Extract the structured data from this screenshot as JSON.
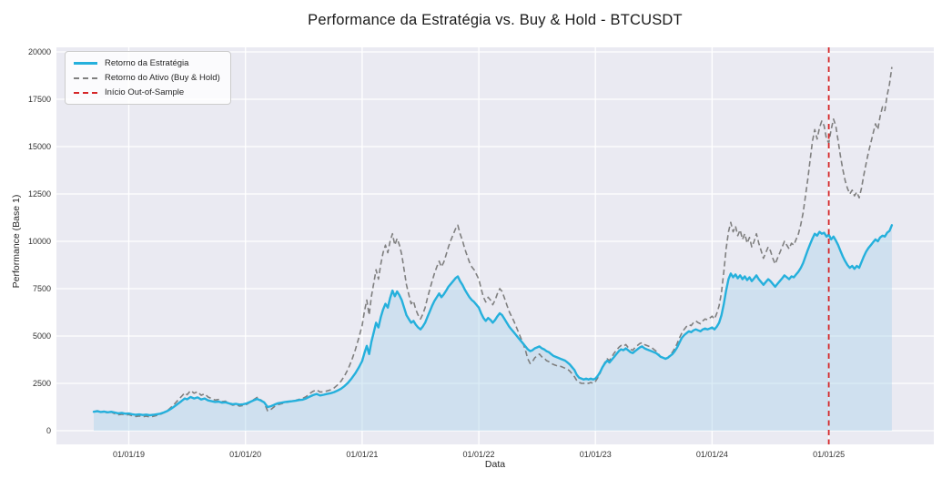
{
  "chart_data": {
    "type": "line",
    "title": "Performance da Estratégia vs. Buy & Hold - BTCUSDT",
    "xlabel": "Data",
    "ylabel": "Performance (Base 1)",
    "grid": true,
    "background_color": "#eaeaf2",
    "grid_color": "#ffffff",
    "legend_position": "upper-left",
    "xlim": [
      2018.38,
      2025.9
    ],
    "ylim": [
      0,
      20000
    ],
    "y_ticks": [
      0,
      2500,
      5000,
      7500,
      10000,
      12500,
      15000,
      17500,
      20000
    ],
    "x_ticks": [
      {
        "x": 2019,
        "label": "01/01/19"
      },
      {
        "x": 2020,
        "label": "01/01/20"
      },
      {
        "x": 2021,
        "label": "01/01/21"
      },
      {
        "x": 2022,
        "label": "01/01/22"
      },
      {
        "x": 2023,
        "label": "01/01/23"
      },
      {
        "x": 2024,
        "label": "01/01/24"
      },
      {
        "x": 2025,
        "label": "01/01/25"
      }
    ],
    "vline": {
      "label": "Início Out-of-Sample",
      "x": 2025.0,
      "color": "#d62728",
      "line_style": "dashed"
    },
    "x": [
      2018.7,
      2018.73,
      2018.76,
      2018.79,
      2018.82,
      2018.85,
      2018.88,
      2018.91,
      2018.94,
      2018.97,
      2019.0,
      2019.03,
      2019.06,
      2019.09,
      2019.12,
      2019.15,
      2019.18,
      2019.21,
      2019.24,
      2019.27,
      2019.3,
      2019.33,
      2019.36,
      2019.39,
      2019.42,
      2019.45,
      2019.48,
      2019.5,
      2019.53,
      2019.56,
      2019.59,
      2019.62,
      2019.65,
      2019.68,
      2019.71,
      2019.74,
      2019.77,
      2019.8,
      2019.83,
      2019.86,
      2019.89,
      2019.92,
      2019.95,
      2019.98,
      2020.01,
      2020.04,
      2020.07,
      2020.1,
      2020.13,
      2020.16,
      2020.19,
      2020.22,
      2020.25,
      2020.28,
      2020.31,
      2020.34,
      2020.37,
      2020.4,
      2020.43,
      2020.46,
      2020.49,
      2020.52,
      2020.55,
      2020.58,
      2020.61,
      2020.64,
      2020.67,
      2020.7,
      2020.73,
      2020.76,
      2020.79,
      2020.82,
      2020.85,
      2020.88,
      2020.91,
      2020.94,
      2020.97,
      2021.0,
      2021.02,
      2021.04,
      2021.06,
      2021.08,
      2021.1,
      2021.12,
      2021.14,
      2021.16,
      2021.18,
      2021.2,
      2021.22,
      2021.24,
      2021.26,
      2021.28,
      2021.3,
      2021.32,
      2021.34,
      2021.36,
      2021.38,
      2021.4,
      2021.42,
      2021.44,
      2021.46,
      2021.48,
      2021.5,
      2021.52,
      2021.54,
      2021.56,
      2021.58,
      2021.6,
      2021.62,
      2021.64,
      2021.66,
      2021.68,
      2021.7,
      2021.72,
      2021.74,
      2021.76,
      2021.78,
      2021.8,
      2021.82,
      2021.84,
      2021.86,
      2021.88,
      2021.9,
      2021.92,
      2021.94,
      2021.96,
      2021.98,
      2022.0,
      2022.02,
      2022.04,
      2022.06,
      2022.08,
      2022.1,
      2022.12,
      2022.14,
      2022.16,
      2022.18,
      2022.2,
      2022.22,
      2022.24,
      2022.26,
      2022.28,
      2022.3,
      2022.32,
      2022.34,
      2022.36,
      2022.38,
      2022.4,
      2022.42,
      2022.44,
      2022.46,
      2022.48,
      2022.5,
      2022.52,
      2022.54,
      2022.56,
      2022.58,
      2022.6,
      2022.62,
      2022.64,
      2022.66,
      2022.68,
      2022.7,
      2022.72,
      2022.74,
      2022.76,
      2022.78,
      2022.8,
      2022.82,
      2022.84,
      2022.86,
      2022.88,
      2022.9,
      2022.92,
      2022.94,
      2022.96,
      2022.98,
      2023.0,
      2023.02,
      2023.04,
      2023.06,
      2023.08,
      2023.1,
      2023.12,
      2023.14,
      2023.16,
      2023.18,
      2023.2,
      2023.22,
      2023.24,
      2023.26,
      2023.28,
      2023.3,
      2023.32,
      2023.34,
      2023.36,
      2023.38,
      2023.4,
      2023.42,
      2023.44,
      2023.46,
      2023.48,
      2023.5,
      2023.52,
      2023.54,
      2023.56,
      2023.58,
      2023.6,
      2023.62,
      2023.64,
      2023.66,
      2023.68,
      2023.7,
      2023.72,
      2023.74,
      2023.76,
      2023.78,
      2023.8,
      2023.82,
      2023.84,
      2023.86,
      2023.88,
      2023.9,
      2023.92,
      2023.94,
      2023.96,
      2023.98,
      2024.0,
      2024.02,
      2024.04,
      2024.06,
      2024.08,
      2024.1,
      2024.12,
      2024.14,
      2024.16,
      2024.18,
      2024.2,
      2024.22,
      2024.24,
      2024.26,
      2024.28,
      2024.3,
      2024.32,
      2024.34,
      2024.36,
      2024.38,
      2024.4,
      2024.42,
      2024.44,
      2024.46,
      2024.48,
      2024.5,
      2024.52,
      2024.54,
      2024.56,
      2024.58,
      2024.6,
      2024.62,
      2024.64,
      2024.66,
      2024.68,
      2024.7,
      2024.72,
      2024.74,
      2024.76,
      2024.78,
      2024.8,
      2024.82,
      2024.84,
      2024.86,
      2024.88,
      2024.9,
      2024.92,
      2024.94,
      2024.96,
      2024.98,
      2025.0,
      2025.02,
      2025.04,
      2025.06,
      2025.08,
      2025.1,
      2025.12,
      2025.14,
      2025.16,
      2025.18,
      2025.2,
      2025.22,
      2025.24,
      2025.26,
      2025.28,
      2025.3,
      2025.32,
      2025.34,
      2025.36,
      2025.38,
      2025.4,
      2025.42,
      2025.44,
      2025.46,
      2025.48,
      2025.5,
      2025.52,
      2025.54
    ],
    "series": [
      {
        "name": "Retorno da Estratégia",
        "color": "#25b0dc",
        "line_style": "solid",
        "line_width": 2.4,
        "area_fill": true,
        "area_color": "#b0d4eb",
        "values": [
          1000,
          1030,
          990,
          1010,
          970,
          1000,
          960,
          920,
          940,
          900,
          910,
          870,
          840,
          860,
          830,
          850,
          820,
          840,
          870,
          900,
          960,
          1040,
          1150,
          1280,
          1420,
          1560,
          1700,
          1660,
          1780,
          1700,
          1760,
          1650,
          1700,
          1600,
          1560,
          1520,
          1540,
          1480,
          1500,
          1440,
          1400,
          1420,
          1380,
          1400,
          1440,
          1520,
          1600,
          1680,
          1600,
          1500,
          1250,
          1300,
          1380,
          1450,
          1480,
          1520,
          1540,
          1560,
          1580,
          1620,
          1640,
          1700,
          1800,
          1880,
          1940,
          1860,
          1900,
          1940,
          1980,
          2040,
          2120,
          2220,
          2360,
          2540,
          2760,
          3020,
          3320,
          3680,
          4100,
          4480,
          4050,
          4700,
          5200,
          5700,
          5450,
          6000,
          6400,
          6700,
          6500,
          7000,
          7400,
          7100,
          7350,
          7150,
          6900,
          6500,
          6100,
          5900,
          5700,
          5800,
          5600,
          5450,
          5350,
          5500,
          5700,
          6000,
          6300,
          6600,
          6850,
          7050,
          7250,
          7050,
          7200,
          7400,
          7600,
          7750,
          7900,
          8050,
          8150,
          7900,
          7700,
          7450,
          7250,
          7050,
          6900,
          6800,
          6650,
          6500,
          6200,
          5950,
          5800,
          5950,
          5850,
          5700,
          5850,
          6050,
          6200,
          6100,
          5900,
          5700,
          5500,
          5350,
          5200,
          5050,
          4900,
          4750,
          4600,
          4450,
          4300,
          4200,
          4250,
          4350,
          4400,
          4450,
          4350,
          4300,
          4200,
          4150,
          4050,
          3950,
          3900,
          3850,
          3800,
          3750,
          3700,
          3600,
          3500,
          3350,
          3200,
          2950,
          2800,
          2750,
          2700,
          2750,
          2700,
          2750,
          2700,
          2750,
          2900,
          3100,
          3350,
          3550,
          3700,
          3600,
          3750,
          3900,
          4050,
          4200,
          4300,
          4250,
          4350,
          4250,
          4150,
          4100,
          4200,
          4300,
          4400,
          4450,
          4350,
          4300,
          4250,
          4200,
          4150,
          4100,
          4000,
          3900,
          3850,
          3800,
          3850,
          3950,
          4050,
          4200,
          4400,
          4650,
          4900,
          5050,
          5150,
          5250,
          5200,
          5300,
          5350,
          5300,
          5250,
          5350,
          5400,
          5350,
          5400,
          5450,
          5350,
          5500,
          5700,
          6100,
          6700,
          7400,
          8000,
          8300,
          8100,
          8250,
          8050,
          8200,
          8000,
          8150,
          7950,
          8100,
          7900,
          8050,
          8200,
          8000,
          7850,
          7700,
          7850,
          8000,
          7900,
          7750,
          7600,
          7750,
          7900,
          8050,
          8200,
          8100,
          8000,
          8150,
          8100,
          8250,
          8400,
          8600,
          8850,
          9200,
          9550,
          9850,
          10150,
          10400,
          10300,
          10500,
          10400,
          10450,
          10250,
          10350,
          10100,
          10250,
          10050,
          9800,
          9500,
          9200,
          8950,
          8750,
          8600,
          8700,
          8550,
          8700,
          8600,
          8900,
          9200,
          9450,
          9650,
          9800,
          9950,
          10100,
          10000,
          10200,
          10300,
          10250,
          10450,
          10550,
          10850
        ]
      },
      {
        "name": "Retorno do Ativo (Buy & Hold)",
        "color": "#7f7f7f",
        "line_style": "dashed",
        "line_width": 1.6,
        "area_fill": false,
        "values": [
          1000,
          1060,
          980,
          1010,
          930,
          980,
          900,
          840,
          870,
          830,
          850,
          790,
          750,
          780,
          730,
          770,
          720,
          760,
          810,
          860,
          940,
          1060,
          1220,
          1400,
          1600,
          1800,
          2000,
          1900,
          2120,
          1980,
          2060,
          1870,
          1950,
          1780,
          1700,
          1620,
          1650,
          1540,
          1560,
          1430,
          1350,
          1380,
          1300,
          1330,
          1390,
          1500,
          1640,
          1760,
          1640,
          1480,
          1050,
          1130,
          1280,
          1380,
          1430,
          1480,
          1520,
          1560,
          1600,
          1660,
          1700,
          1800,
          1960,
          2080,
          2160,
          2040,
          2060,
          2100,
          2160,
          2260,
          2420,
          2620,
          2900,
          3260,
          3700,
          4240,
          4860,
          5560,
          6300,
          6900,
          6100,
          7100,
          7800,
          8500,
          8000,
          8800,
          9400,
          9800,
          9400,
          10000,
          10400,
          9800,
          10150,
          9800,
          9300,
          8500,
          7700,
          7200,
          6700,
          6850,
          6400,
          6100,
          5900,
          6150,
          6500,
          7000,
          7450,
          7900,
          8300,
          8650,
          8950,
          8650,
          8900,
          9300,
          9700,
          10050,
          10350,
          10650,
          10850,
          10400,
          10050,
          9600,
          9250,
          8900,
          8650,
          8500,
          8250,
          8000,
          7500,
          7050,
          6800,
          7050,
          6900,
          6650,
          6900,
          7250,
          7500,
          7350,
          7000,
          6650,
          6300,
          6050,
          5800,
          5500,
          5200,
          4900,
          4600,
          4250,
          3800,
          3550,
          3650,
          3850,
          3950,
          4050,
          3900,
          3850,
          3700,
          3650,
          3550,
          3500,
          3450,
          3400,
          3400,
          3350,
          3300,
          3250,
          3150,
          3000,
          2850,
          2650,
          2550,
          2500,
          2500,
          2550,
          2500,
          2550,
          2500,
          2600,
          2800,
          3050,
          3350,
          3600,
          3800,
          3700,
          3900,
          4100,
          4250,
          4400,
          4500,
          4450,
          4550,
          4400,
          4300,
          4250,
          4400,
          4500,
          4600,
          4650,
          4550,
          4500,
          4450,
          4400,
          4300,
          4200,
          4050,
          3900,
          3850,
          3800,
          3850,
          4000,
          4150,
          4350,
          4600,
          4900,
          5150,
          5350,
          5500,
          5600,
          5550,
          5700,
          5800,
          5700,
          5650,
          5800,
          5900,
          5850,
          5950,
          6050,
          5900,
          6200,
          6600,
          7300,
          8400,
          9600,
          10500,
          11000,
          10500,
          10800,
          10300,
          10600,
          10100,
          10400,
          9900,
          10200,
          9700,
          10000,
          10400,
          9900,
          9500,
          9100,
          9400,
          9700,
          9500,
          9100,
          8800,
          9100,
          9400,
          9700,
          10000,
          9800,
          9600,
          9900,
          9800,
          10100,
          10400,
          10900,
          11500,
          12400,
          13300,
          14300,
          15300,
          15900,
          15400,
          16000,
          16350,
          16100,
          15400,
          15200,
          15900,
          16450,
          16100,
          15300,
          14500,
          13800,
          13200,
          12800,
          12500,
          12700,
          12400,
          12600,
          12300,
          12800,
          13500,
          14100,
          14700,
          15200,
          15700,
          16200,
          15900,
          16600,
          17100,
          16900,
          17700,
          18300,
          19200
        ]
      }
    ]
  }
}
